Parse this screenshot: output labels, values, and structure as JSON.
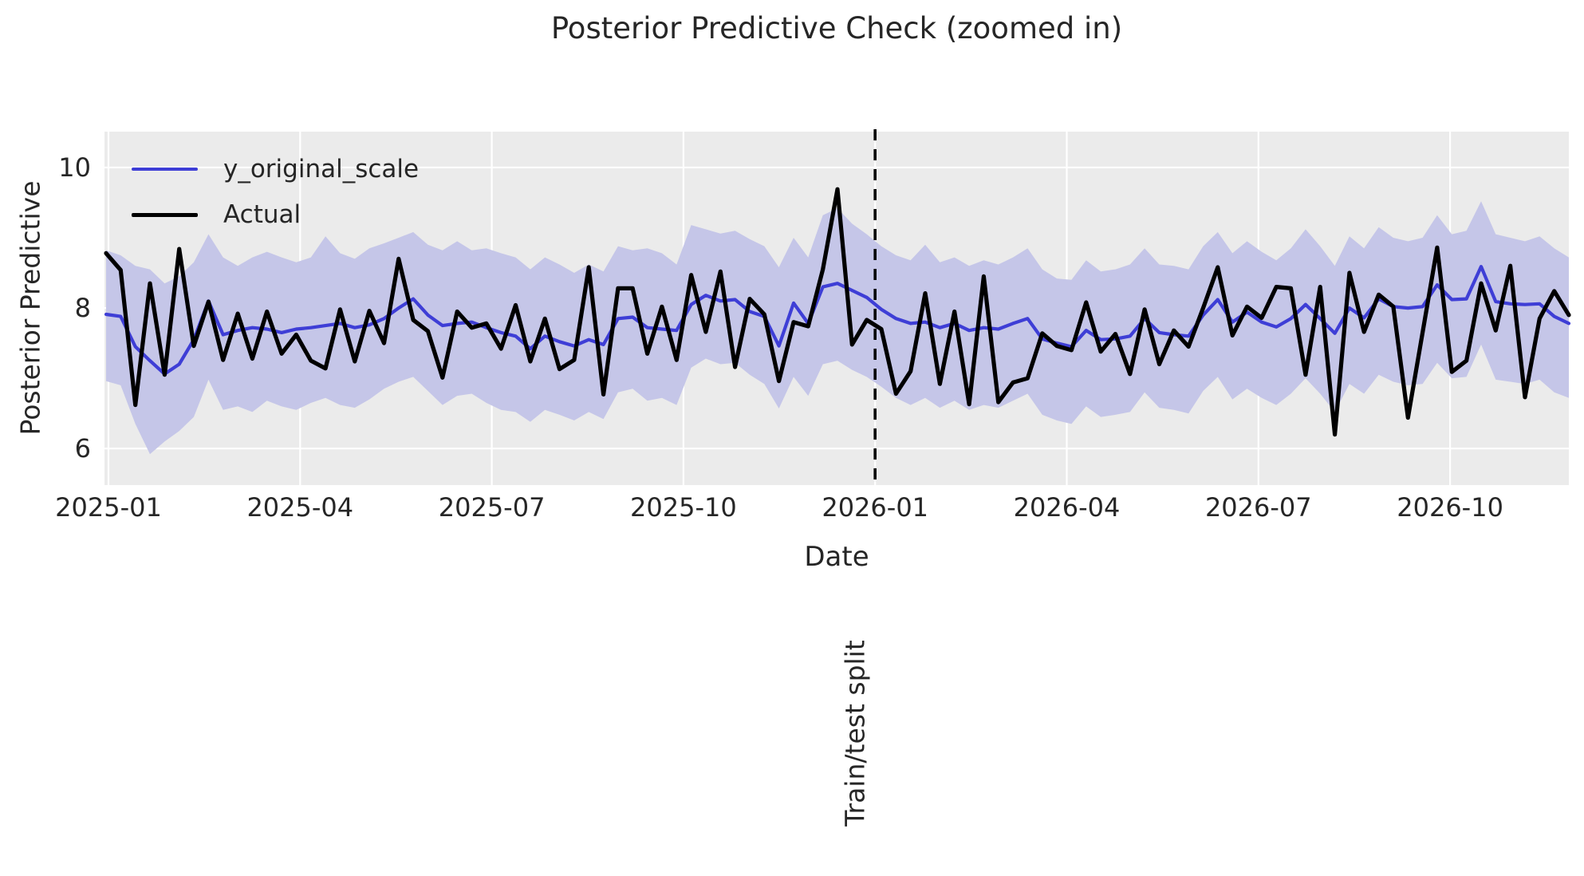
{
  "colors": {
    "figure_bg": "#ffffff",
    "plot_bg": "#ebebeb",
    "grid": "#ffffff",
    "text": "#262626",
    "band": "#c5c6e8",
    "predicted_line": "#3e3ed6",
    "actual_line": "#000000",
    "split_line": "#000000"
  },
  "chart_data": {
    "type": "line",
    "title": "Posterior Predictive Check (zoomed in)",
    "xlabel": "Date",
    "ylabel": "Posterior Predictive",
    "grid": true,
    "legend_position": "upper left",
    "x_start": "2025-01-01",
    "x_step_days": 7,
    "n_points": 101,
    "ylim": [
      5.48,
      10.51
    ],
    "yticks": [
      10,
      8,
      6
    ],
    "xticks": [
      {
        "label": "2025-01",
        "month": 0
      },
      {
        "label": "2025-04",
        "month": 3
      },
      {
        "label": "2025-07",
        "month": 6
      },
      {
        "label": "2025-10",
        "month": 9
      },
      {
        "label": "2026-01",
        "month": 12
      },
      {
        "label": "2026-04",
        "month": 15
      },
      {
        "label": "2026-07",
        "month": 18
      },
      {
        "label": "2026-10",
        "month": 21
      }
    ],
    "split": {
      "label": "Train/test split",
      "month": 12,
      "date": "2026-01"
    },
    "series": [
      {
        "name": "y_original_scale",
        "color": "#3e3ed6",
        "values": [
          7.91,
          7.88,
          7.45,
          7.25,
          7.06,
          7.2,
          7.55,
          8.1,
          7.62,
          7.68,
          7.72,
          7.7,
          7.65,
          7.7,
          7.72,
          7.75,
          7.78,
          7.72,
          7.76,
          7.85,
          8.0,
          8.13,
          7.9,
          7.75,
          7.78,
          7.8,
          7.72,
          7.65,
          7.6,
          7.42,
          7.6,
          7.52,
          7.46,
          7.55,
          7.48,
          7.85,
          7.87,
          7.72,
          7.7,
          7.68,
          8.05,
          8.18,
          8.1,
          8.12,
          7.95,
          7.88,
          7.46,
          8.07,
          7.78,
          8.3,
          8.35,
          8.25,
          8.15,
          7.98,
          7.85,
          7.78,
          7.8,
          7.72,
          7.78,
          7.68,
          7.72,
          7.7,
          7.78,
          7.85,
          7.56,
          7.5,
          7.45,
          7.68,
          7.55,
          7.56,
          7.6,
          7.85,
          7.65,
          7.62,
          7.6,
          7.9,
          8.12,
          7.8,
          7.94,
          7.8,
          7.73,
          7.85,
          8.05,
          7.85,
          7.64,
          8.0,
          7.86,
          8.13,
          8.02,
          8.0,
          8.02,
          8.33,
          8.12,
          8.13,
          8.59,
          8.09,
          8.06,
          8.05,
          8.06,
          7.88,
          7.78
        ]
      },
      {
        "name": "Actual",
        "color": "#000000",
        "values": [
          8.78,
          8.54,
          6.62,
          8.35,
          7.05,
          8.84,
          7.46,
          8.09,
          7.26,
          7.92,
          7.28,
          7.95,
          7.35,
          7.62,
          7.25,
          7.14,
          7.98,
          7.24,
          7.96,
          7.5,
          8.7,
          7.83,
          7.67,
          7.01,
          7.95,
          7.72,
          7.78,
          7.42,
          8.04,
          7.24,
          7.85,
          7.13,
          7.26,
          8.58,
          6.77,
          8.28,
          8.28,
          7.35,
          8.02,
          7.26,
          8.47,
          7.66,
          8.52,
          7.16,
          8.13,
          7.91,
          6.96,
          7.8,
          7.74,
          8.55,
          9.69,
          7.48,
          7.83,
          7.7,
          6.78,
          7.1,
          8.21,
          6.92,
          7.95,
          6.63,
          8.45,
          6.66,
          6.94,
          7.0,
          7.64,
          7.46,
          7.4,
          8.08,
          7.38,
          7.63,
          7.06,
          7.98,
          7.2,
          7.68,
          7.45,
          8.0,
          8.58,
          7.61,
          8.02,
          7.86,
          8.3,
          8.28,
          7.05,
          8.3,
          6.2,
          8.5,
          7.66,
          8.19,
          8.02,
          6.44,
          7.65,
          8.86,
          7.09,
          7.25,
          8.35,
          7.68,
          8.6,
          6.73,
          7.85,
          8.24,
          7.9
        ]
      }
    ],
    "band": {
      "name": "posterior-credible-interval",
      "color": "#c5c6e8",
      "upper": [
        8.82,
        8.75,
        8.6,
        8.55,
        8.35,
        8.45,
        8.65,
        9.05,
        8.72,
        8.6,
        8.72,
        8.8,
        8.72,
        8.65,
        8.72,
        9.02,
        8.78,
        8.7,
        8.85,
        8.92,
        9.0,
        9.08,
        8.9,
        8.82,
        8.95,
        8.82,
        8.85,
        8.78,
        8.72,
        8.55,
        8.72,
        8.62,
        8.5,
        8.62,
        8.52,
        8.88,
        8.82,
        8.85,
        8.78,
        8.62,
        9.18,
        9.12,
        9.06,
        9.1,
        8.98,
        8.88,
        8.58,
        9.0,
        8.72,
        9.32,
        9.42,
        9.2,
        9.05,
        8.88,
        8.75,
        8.68,
        8.9,
        8.65,
        8.72,
        8.6,
        8.68,
        8.62,
        8.72,
        8.85,
        8.55,
        8.42,
        8.4,
        8.68,
        8.52,
        8.55,
        8.62,
        8.85,
        8.62,
        8.6,
        8.55,
        8.88,
        9.08,
        8.78,
        8.95,
        8.8,
        8.68,
        8.85,
        9.12,
        8.88,
        8.6,
        9.02,
        8.85,
        9.15,
        9.0,
        8.95,
        9.0,
        9.32,
        9.05,
        9.1,
        9.52,
        9.05,
        9.0,
        8.95,
        9.02,
        8.85,
        8.72
      ],
      "lower": [
        6.96,
        6.9,
        6.35,
        5.92,
        6.1,
        6.25,
        6.45,
        6.98,
        6.55,
        6.6,
        6.52,
        6.68,
        6.6,
        6.55,
        6.65,
        6.72,
        6.62,
        6.58,
        6.7,
        6.85,
        6.95,
        7.02,
        6.82,
        6.62,
        6.75,
        6.78,
        6.65,
        6.55,
        6.52,
        6.38,
        6.55,
        6.48,
        6.4,
        6.52,
        6.42,
        6.8,
        6.85,
        6.68,
        6.72,
        6.62,
        7.15,
        7.28,
        7.2,
        7.22,
        7.05,
        6.92,
        6.57,
        7.02,
        6.75,
        7.2,
        7.25,
        7.12,
        7.02,
        6.88,
        6.72,
        6.62,
        6.72,
        6.58,
        6.68,
        6.55,
        6.62,
        6.58,
        6.68,
        6.78,
        6.48,
        6.4,
        6.35,
        6.6,
        6.45,
        6.48,
        6.52,
        6.8,
        6.58,
        6.55,
        6.5,
        6.82,
        7.02,
        6.7,
        6.85,
        6.72,
        6.62,
        6.78,
        7.0,
        6.78,
        6.52,
        6.92,
        6.78,
        7.05,
        6.95,
        6.9,
        6.92,
        7.22,
        7.0,
        7.02,
        7.48,
        6.98,
        6.95,
        6.92,
        6.98,
        6.8,
        6.72
      ]
    }
  }
}
